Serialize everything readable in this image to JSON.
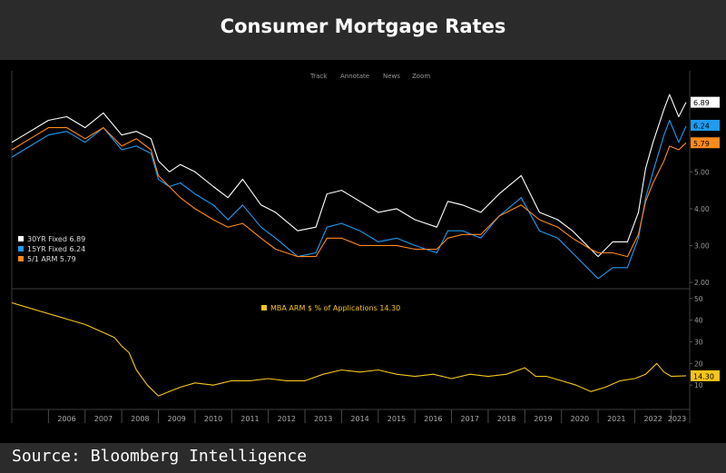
{
  "page": {
    "title": "Consumer Mortgage Rates",
    "source": "Source: Bloomberg Intelligence"
  },
  "toolbar": {
    "items": [
      "Track",
      "Annotate",
      "News",
      "Zoom"
    ]
  },
  "chart_data": [
    {
      "type": "line",
      "title": "",
      "xlabel": "",
      "ylabel": "",
      "x_ticks": [
        "2006",
        "2007",
        "2008",
        "2009",
        "2010",
        "2011",
        "2012",
        "2013",
        "2014",
        "2015",
        "2016",
        "2017",
        "2018",
        "2019",
        "2020",
        "2021",
        "2022",
        "2023"
      ],
      "y_ticks": [
        "5.00",
        "4.00",
        "3.00",
        "2.00"
      ],
      "ylim": [
        2.0,
        7.3
      ],
      "grid": false,
      "legend_position": "bottom-left",
      "series": [
        {
          "name": "30YR Fixed",
          "legend_label": "30YR Fixed  6.89",
          "last_label": "6.89",
          "color": "#ffffff",
          "x": [
            2005.0,
            2005.5,
            2006.0,
            2006.5,
            2007.0,
            2007.5,
            2008.0,
            2008.4,
            2008.8,
            2009.0,
            2009.3,
            2009.6,
            2010.0,
            2010.5,
            2010.9,
            2011.3,
            2011.8,
            2012.2,
            2012.8,
            2013.3,
            2013.6,
            2014.0,
            2014.5,
            2015.0,
            2015.5,
            2016.0,
            2016.6,
            2016.9,
            2017.3,
            2017.8,
            2018.3,
            2018.9,
            2019.4,
            2019.9,
            2020.3,
            2020.8,
            2021.0,
            2021.4,
            2021.8,
            2022.1,
            2022.3,
            2022.5,
            2022.8,
            2022.95,
            2023.2,
            2023.4
          ],
          "y": [
            5.8,
            6.1,
            6.4,
            6.5,
            6.2,
            6.6,
            6.0,
            6.1,
            5.9,
            5.3,
            5.0,
            5.2,
            5.0,
            4.6,
            4.3,
            4.8,
            4.1,
            3.9,
            3.4,
            3.5,
            4.4,
            4.5,
            4.2,
            3.9,
            4.0,
            3.7,
            3.5,
            4.2,
            4.1,
            3.9,
            4.4,
            4.9,
            3.9,
            3.7,
            3.4,
            2.9,
            2.7,
            3.1,
            3.1,
            3.9,
            5.1,
            5.8,
            6.7,
            7.1,
            6.5,
            6.89
          ]
        },
        {
          "name": "15YR Fixed",
          "legend_label": "15YR Fixed  6.24",
          "last_label": "6.24",
          "color": "#1f9bf0",
          "x": [
            2005.0,
            2005.5,
            2006.0,
            2006.5,
            2007.0,
            2007.5,
            2008.0,
            2008.4,
            2008.8,
            2009.0,
            2009.3,
            2009.6,
            2010.0,
            2010.5,
            2010.9,
            2011.3,
            2011.8,
            2012.2,
            2012.8,
            2013.3,
            2013.6,
            2014.0,
            2014.5,
            2015.0,
            2015.5,
            2016.0,
            2016.6,
            2016.9,
            2017.3,
            2017.8,
            2018.3,
            2018.9,
            2019.4,
            2019.9,
            2020.3,
            2020.8,
            2021.0,
            2021.4,
            2021.8,
            2022.1,
            2022.3,
            2022.5,
            2022.8,
            2022.95,
            2023.2,
            2023.4
          ],
          "y": [
            5.4,
            5.7,
            6.0,
            6.1,
            5.8,
            6.2,
            5.6,
            5.7,
            5.5,
            4.8,
            4.6,
            4.7,
            4.4,
            4.1,
            3.7,
            4.1,
            3.5,
            3.2,
            2.7,
            2.8,
            3.5,
            3.6,
            3.4,
            3.1,
            3.2,
            3.0,
            2.8,
            3.4,
            3.4,
            3.2,
            3.8,
            4.3,
            3.4,
            3.2,
            2.8,
            2.3,
            2.1,
            2.4,
            2.4,
            3.2,
            4.3,
            5.0,
            6.0,
            6.4,
            5.8,
            6.24
          ]
        },
        {
          "name": "5/1 ARM",
          "legend_label": "5/1 ARM    5.79",
          "last_label": "5.79",
          "color": "#ff8a1c",
          "x": [
            2005.0,
            2005.5,
            2006.0,
            2006.5,
            2007.0,
            2007.5,
            2008.0,
            2008.4,
            2008.8,
            2009.0,
            2009.3,
            2009.6,
            2010.0,
            2010.5,
            2010.9,
            2011.3,
            2011.8,
            2012.2,
            2012.8,
            2013.3,
            2013.6,
            2014.0,
            2014.5,
            2015.0,
            2015.5,
            2016.0,
            2016.6,
            2016.9,
            2017.3,
            2017.8,
            2018.3,
            2018.9,
            2019.4,
            2019.9,
            2020.3,
            2020.8,
            2021.0,
            2021.4,
            2021.8,
            2022.1,
            2022.3,
            2022.5,
            2022.8,
            2022.95,
            2023.2,
            2023.4
          ],
          "y": [
            5.6,
            5.9,
            6.2,
            6.2,
            5.9,
            6.2,
            5.7,
            5.9,
            5.6,
            4.9,
            4.6,
            4.3,
            4.0,
            3.7,
            3.5,
            3.6,
            3.2,
            2.9,
            2.7,
            2.7,
            3.2,
            3.2,
            3.0,
            3.0,
            3.0,
            2.9,
            2.9,
            3.2,
            3.3,
            3.3,
            3.8,
            4.1,
            3.7,
            3.5,
            3.2,
            2.9,
            2.8,
            2.8,
            2.7,
            3.3,
            4.2,
            4.7,
            5.3,
            5.7,
            5.6,
            5.79
          ]
        }
      ]
    },
    {
      "type": "line",
      "title": "",
      "xlabel": "",
      "ylabel": "",
      "y_ticks": [
        "50",
        "40",
        "30",
        "20",
        "10"
      ],
      "ylim": [
        0,
        52
      ],
      "grid": false,
      "legend_position": "top-left",
      "series": [
        {
          "name": "MBA ARM $ % of Applications",
          "legend_label": "MBA ARM $ % of Applications  14.30",
          "last_label": "14.30",
          "color": "#f5c518",
          "x": [
            2005.0,
            2005.4,
            2005.8,
            2006.2,
            2006.6,
            2007.0,
            2007.4,
            2007.8,
            2008.0,
            2008.2,
            2008.4,
            2008.7,
            2009.0,
            2009.3,
            2009.6,
            2010.0,
            2010.5,
            2011.0,
            2011.5,
            2012.0,
            2012.5,
            2013.0,
            2013.5,
            2014.0,
            2014.5,
            2015.0,
            2015.5,
            2016.0,
            2016.5,
            2017.0,
            2017.5,
            2018.0,
            2018.5,
            2019.0,
            2019.3,
            2019.6,
            2020.0,
            2020.4,
            2020.8,
            2021.2,
            2021.6,
            2022.0,
            2022.3,
            2022.6,
            2022.8,
            2023.0,
            2023.4
          ],
          "y": [
            48,
            46,
            44,
            42,
            40,
            38,
            35,
            32,
            28,
            25,
            17,
            10,
            5,
            7,
            9,
            11,
            10,
            12,
            12,
            13,
            12,
            12,
            15,
            17,
            16,
            17,
            15,
            14,
            15,
            13,
            15,
            14,
            15,
            18,
            14,
            14,
            12,
            10,
            7,
            9,
            12,
            13,
            15,
            20,
            16,
            14,
            14.3
          ]
        }
      ]
    }
  ]
}
